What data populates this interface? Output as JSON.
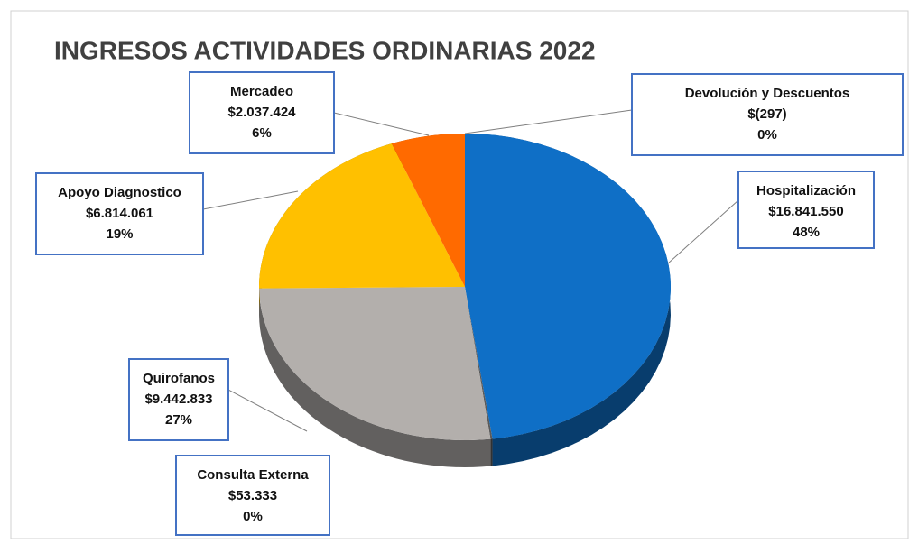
{
  "chart_data": {
    "type": "pie",
    "title": "INGRESOS ACTIVIDADES ORDINARIAS 2022",
    "categories": [
      "Hospitalización",
      "Consulta Externa",
      "Quirofanos",
      "Apoyo Diagnostico",
      "Mercadeo",
      "Devolución y Descuentos"
    ],
    "values": [
      16841550,
      53333,
      9442833,
      6814061,
      2037424,
      -297
    ],
    "value_labels": [
      "$16.841.550",
      "$53.333",
      "$9.442.833",
      "$6.814.061",
      "$2.037.424",
      "$(297)"
    ],
    "percent_labels": [
      "48%",
      "0%",
      "27%",
      "19%",
      "6%",
      "0%"
    ],
    "colors": [
      "#0f6fc6",
      "#5a5a5a",
      "#b3afac",
      "#ffc000",
      "#ff6a00",
      "#1f3a66"
    ]
  }
}
